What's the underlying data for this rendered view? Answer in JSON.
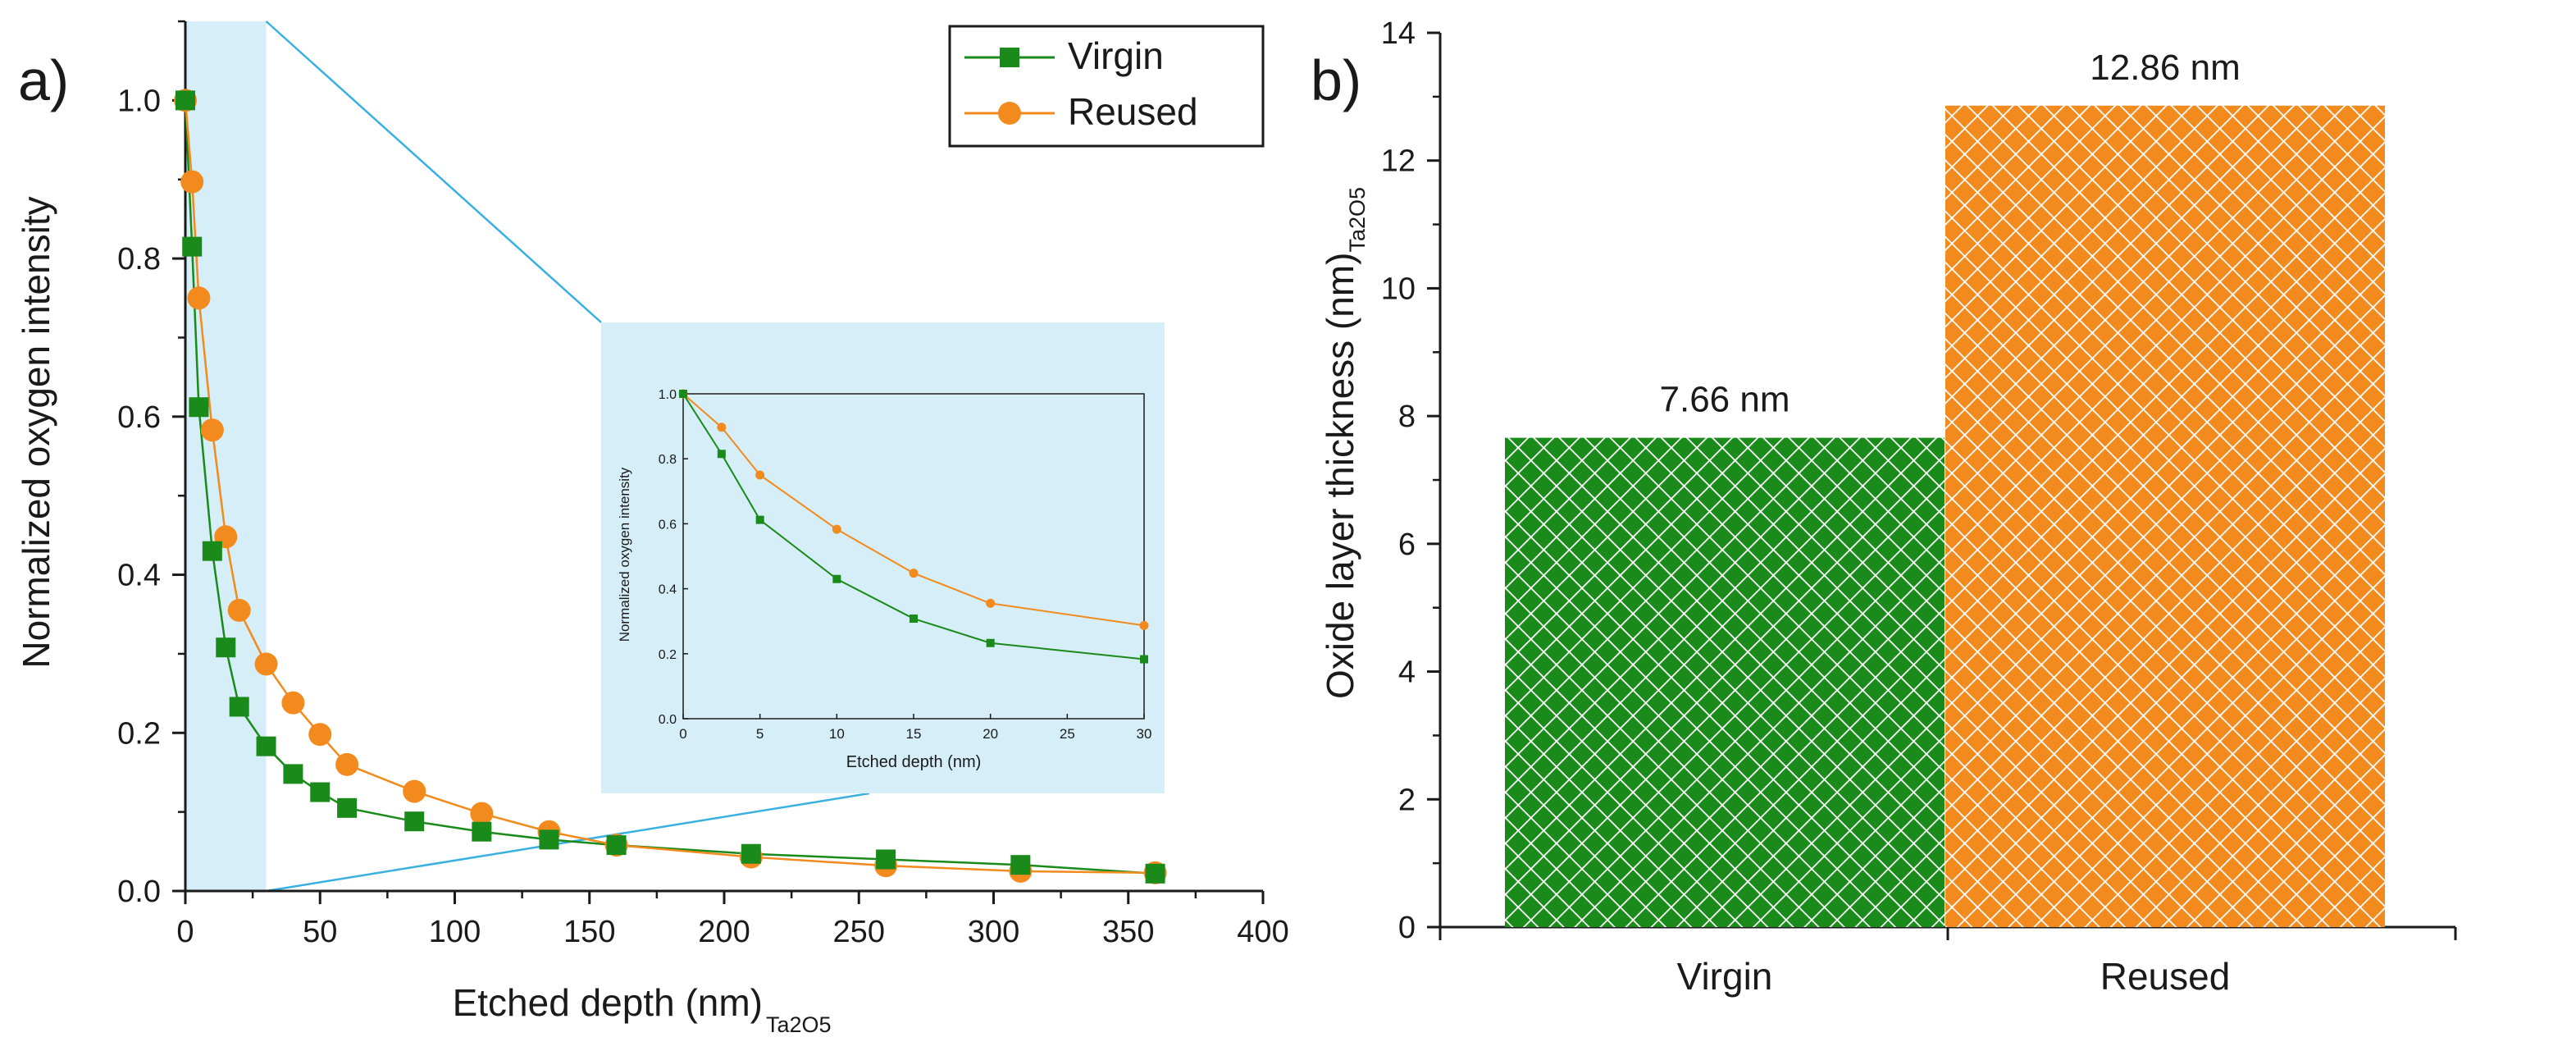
{
  "colors": {
    "virgin": "#1a8a1a",
    "reused": "#f28a1e",
    "highlight": "#d6eef8",
    "zoom_line": "#39b0e0",
    "axis": "#1a1a1a"
  },
  "chart_data": [
    {
      "panel": "a)",
      "type": "line",
      "xlabel": "Etched depth (nm)",
      "xlabel_sub": "Ta2O5",
      "ylabel": "Normalized oxygen intensity",
      "xlim": [
        0,
        400
      ],
      "ylim": [
        0,
        1.1
      ],
      "xticks": [
        "0",
        "50",
        "100",
        "150",
        "200",
        "250",
        "300",
        "350",
        "400"
      ],
      "yticks": [
        "0.0",
        "0.2",
        "0.4",
        "0.6",
        "0.8",
        "1.0"
      ],
      "highlight_range": [
        0,
        30
      ],
      "legend_position": "top-right",
      "series": [
        {
          "name": "Virgin",
          "marker": "square",
          "color": "#1a8a1a",
          "x": [
            0,
            2.5,
            5,
            10,
            15,
            20,
            30,
            40,
            50,
            60,
            85,
            110,
            135,
            160,
            210,
            260,
            310,
            360
          ],
          "y": [
            1.0,
            0.815,
            0.612,
            0.43,
            0.308,
            0.233,
            0.183,
            0.148,
            0.125,
            0.105,
            0.088,
            0.075,
            0.065,
            0.058,
            0.047,
            0.04,
            0.033,
            0.022
          ]
        },
        {
          "name": "Reused",
          "marker": "circle",
          "color": "#f28a1e",
          "x": [
            0,
            2.5,
            5,
            10,
            15,
            20,
            30,
            40,
            50,
            60,
            85,
            110,
            135,
            160,
            210,
            260,
            310,
            360
          ],
          "y": [
            1.0,
            0.897,
            0.75,
            0.583,
            0.448,
            0.355,
            0.287,
            0.238,
            0.198,
            0.16,
            0.126,
            0.098,
            0.075,
            0.058,
            0.043,
            0.032,
            0.025,
            0.023
          ]
        }
      ]
    },
    {
      "panel": "inset",
      "type": "line",
      "xlabel": "Etched depth (nm)",
      "ylabel": "Normalized oxygen intensity",
      "xlim": [
        0,
        30
      ],
      "ylim": [
        0,
        1.0
      ],
      "xticks": [
        "0",
        "5",
        "10",
        "15",
        "20",
        "25",
        "30"
      ],
      "yticks": [
        "0.0",
        "0.2",
        "0.4",
        "0.6",
        "0.8",
        "1.0"
      ],
      "series": [
        {
          "name": "Virgin",
          "color": "#1a8a1a",
          "x": [
            0,
            2.5,
            5,
            10,
            15,
            20,
            30
          ],
          "y": [
            1.0,
            0.815,
            0.612,
            0.43,
            0.308,
            0.233,
            0.183
          ]
        },
        {
          "name": "Reused",
          "color": "#f28a1e",
          "x": [
            0,
            2.5,
            5,
            10,
            15,
            20,
            30
          ],
          "y": [
            1.0,
            0.897,
            0.75,
            0.583,
            0.448,
            0.355,
            0.287
          ]
        }
      ]
    },
    {
      "panel": "b)",
      "type": "bar",
      "categories": [
        "Virgin",
        "Reused"
      ],
      "values": [
        7.66,
        12.86
      ],
      "labels": [
        "7.66 nm",
        "12.86 nm"
      ],
      "colors": [
        "#1a8a1a",
        "#f28a1e"
      ],
      "ylabel": "Oxide layer thickness (nm)",
      "ylabel_sub": "Ta2O5",
      "ylim": [
        0,
        14
      ],
      "yticks": [
        "0",
        "2",
        "4",
        "6",
        "8",
        "10",
        "12",
        "14"
      ],
      "pattern": "crosshatch"
    }
  ]
}
